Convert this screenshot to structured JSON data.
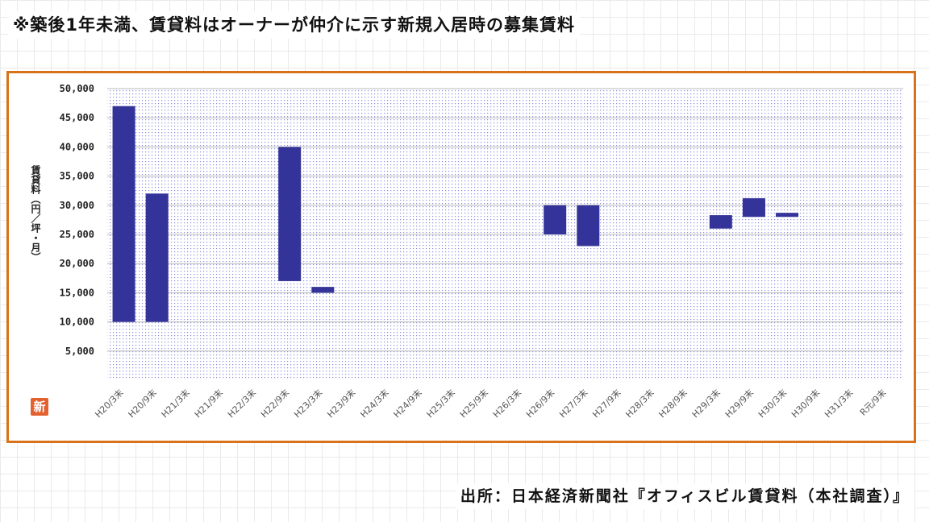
{
  "header": {
    "note": "※築後1年未満、賃貸料はオーナーが仲介に示す新規入居時の募集賃料"
  },
  "footer": {
    "source": "出所：日本経済新聞社『オフィスビル賃貸料（本社調査）』"
  },
  "badge": {
    "label": "新",
    "color": "#e2612f"
  },
  "colors": {
    "bar": "#333399",
    "frame": "#d9731a",
    "plot_dots": "#2b2bd0"
  },
  "chart_data": {
    "type": "bar",
    "subtype": "floating",
    "ylabel": "賃貸料（円／坪・月）",
    "ylim": [
      0,
      50000
    ],
    "yticks": [
      5000,
      10000,
      15000,
      20000,
      25000,
      30000,
      35000,
      40000,
      45000,
      50000
    ],
    "ytick_labels": [
      "5,000",
      "10,000",
      "15,000",
      "20,000",
      "25,000",
      "30,000",
      "35,000",
      "40,000",
      "45,000",
      "50,000"
    ],
    "grid": true,
    "categories": [
      "H20/3末",
      "H20/9末",
      "H21/3末",
      "H21/9末",
      "H22/3末",
      "H22/9末",
      "H23/3末",
      "H23/9末",
      "H24/3末",
      "H24/9末",
      "H25/3末",
      "H25/9末",
      "H26/3末",
      "H26/9末",
      "H27/3末",
      "H27/9末",
      "H28/3末",
      "H28/9末",
      "H29/3末",
      "H29/9末",
      "H30/3末",
      "H30/9末",
      "H31/3末",
      "R元/9末"
    ],
    "low": [
      10000,
      10000,
      null,
      null,
      null,
      17000,
      15000,
      null,
      null,
      null,
      null,
      null,
      null,
      25000,
      23000,
      null,
      null,
      null,
      26000,
      28000,
      28000,
      null,
      null,
      null
    ],
    "high": [
      47000,
      32000,
      null,
      null,
      null,
      40000,
      16000,
      null,
      null,
      null,
      null,
      null,
      null,
      30000,
      30000,
      null,
      null,
      null,
      28300,
      31200,
      28700,
      null,
      null,
      null
    ]
  }
}
